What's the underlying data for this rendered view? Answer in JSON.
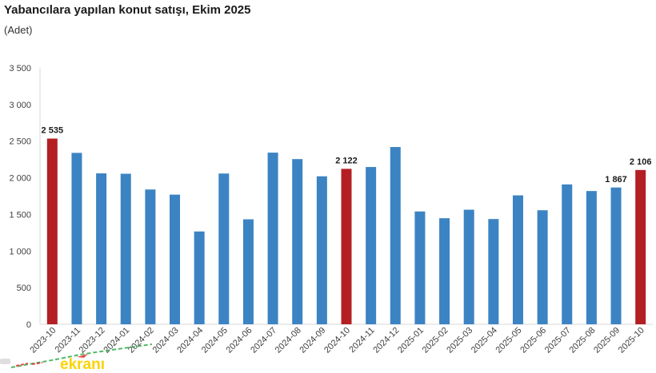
{
  "header": {
    "title": "Yabancılara yapılan konut satışı, Ekim 2025",
    "subtitle": "(Adet)"
  },
  "watermark": {
    "text": "ekranı",
    "text_color": "#fcd303",
    "line_color": "#3cb054",
    "accent_color": "#e03131"
  },
  "chart_data": {
    "type": "bar",
    "title": "Yabancılara yapılan konut satışı, Ekim 2025",
    "ylabel": "(Adet)",
    "categories": [
      "2023-10",
      "2023-11",
      "2023-12",
      "2024-01",
      "2024-02",
      "2024-03",
      "2024-04",
      "2024-05",
      "2024-06",
      "2024-07",
      "2024-08",
      "2024-09",
      "2024-10",
      "2024-11",
      "2024-12",
      "2025-01",
      "2025-02",
      "2025-03",
      "2025-04",
      "2025-05",
      "2025-06",
      "2025-07",
      "2025-08",
      "2025-09",
      "2025-10"
    ],
    "values": [
      2535,
      2340,
      2060,
      2055,
      1840,
      1770,
      1267,
      2058,
      1433,
      2343,
      2255,
      2020,
      2122,
      2147,
      2420,
      1540,
      1448,
      1564,
      1437,
      1760,
      1557,
      1909,
      1819,
      1867,
      2106
    ],
    "highlight_indices": [
      0,
      12,
      24
    ],
    "bar_color_default": "#3c83c3",
    "bar_color_highlight": "#b41f24",
    "data_labels": [
      {
        "index": 0,
        "text": "2 535"
      },
      {
        "index": 12,
        "text": "2 122"
      },
      {
        "index": 23,
        "text": "1 867"
      },
      {
        "index": 24,
        "text": "2 106"
      }
    ],
    "ylim": [
      0,
      3500
    ],
    "yticks": [
      {
        "value": 0,
        "label": "0"
      },
      {
        "value": 500,
        "label": "500"
      },
      {
        "value": 1000,
        "label": "1 000"
      },
      {
        "value": 1500,
        "label": "1 500"
      },
      {
        "value": 2000,
        "label": "2 000"
      },
      {
        "value": 2500,
        "label": "2 500"
      },
      {
        "value": 3000,
        "label": "3 000"
      },
      {
        "value": 3500,
        "label": "3 500"
      }
    ],
    "grid": false,
    "legend": "none",
    "axis_color": "#d9d9d9",
    "tick_text_color": "#404040",
    "data_label_color": "#1a1a1a"
  }
}
